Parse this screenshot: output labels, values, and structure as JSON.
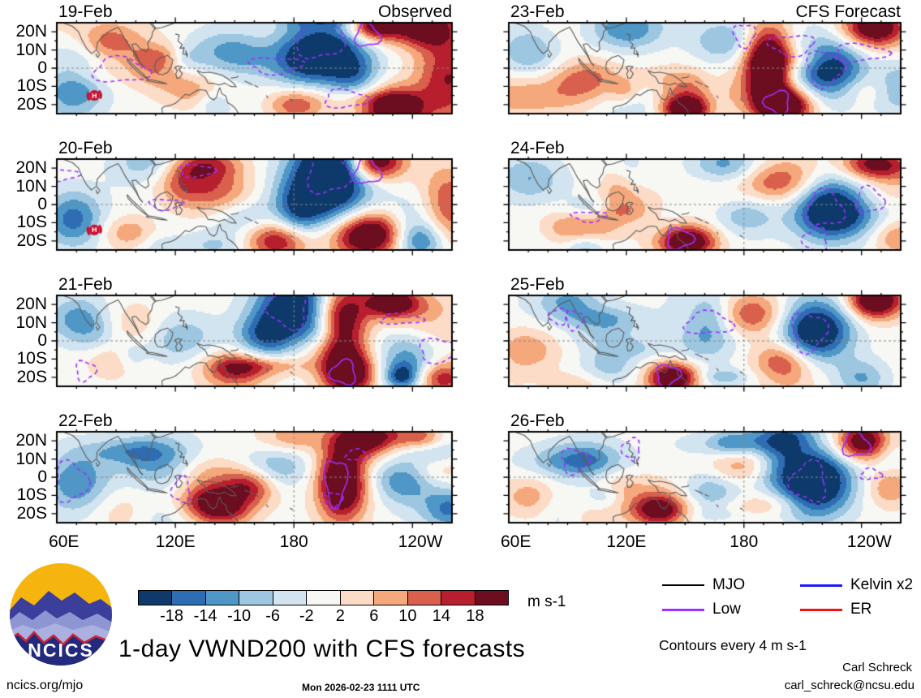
{
  "chart_data": {
    "type": "heatmap",
    "title": "1-day VWND200 with CFS forecasts",
    "variable": "VWND200 anomaly",
    "columns": [
      {
        "title": "Observed",
        "panels": [
          {
            "date": "19-Feb",
            "cyclone_marker": true
          },
          {
            "date": "20-Feb",
            "cyclone_marker": true
          },
          {
            "date": "21-Feb",
            "cyclone_marker": false
          },
          {
            "date": "22-Feb",
            "cyclone_marker": false
          }
        ]
      },
      {
        "title": "CFS Forecast",
        "panels": [
          {
            "date": "23-Feb",
            "cyclone_marker": false
          },
          {
            "date": "24-Feb",
            "cyclone_marker": false
          },
          {
            "date": "25-Feb",
            "cyclone_marker": false
          },
          {
            "date": "26-Feb",
            "cyclone_marker": false
          }
        ]
      }
    ],
    "x_axis": {
      "ticks": [
        "60E",
        "120E",
        "180",
        "120W"
      ]
    },
    "y_axis": {
      "ticks": [
        "20N",
        "10N",
        "0",
        "10S",
        "20S"
      ]
    },
    "colorbar": {
      "levels": [
        "-18",
        "-14",
        "-10",
        "-6",
        "-2",
        "2",
        "6",
        "10",
        "14",
        "18"
      ],
      "colors": [
        "#0d3a6b",
        "#2e6db4",
        "#4f97c6",
        "#9dc6e0",
        "#d2e4f0",
        "#f7f7f4",
        "#fcdcc6",
        "#f5a87b",
        "#d8604c",
        "#b71f2e",
        "#6d0d20"
      ],
      "units": "m s-1"
    },
    "legend": {
      "items": [
        {
          "label": "MJO",
          "color": "#000000"
        },
        {
          "label": "Low",
          "color": "#9b30ff"
        },
        {
          "label": "Kelvin x2",
          "color": "#1a1aff"
        },
        {
          "label": "ER",
          "color": "#f01414"
        }
      ]
    },
    "contour_note": "Contours every 4 m s-1",
    "map_colors": {
      "coast": "#5b5b5b",
      "reference_line": "#888888"
    }
  },
  "branding": {
    "logo_text": "NCICS",
    "site": "ncics.org/mjo"
  },
  "footer": {
    "timestamp": "Mon 2026-02-23 1111 UTC",
    "credit_name": "Carl Schreck",
    "credit_email": "carl_schreck@ncsu.edu"
  }
}
